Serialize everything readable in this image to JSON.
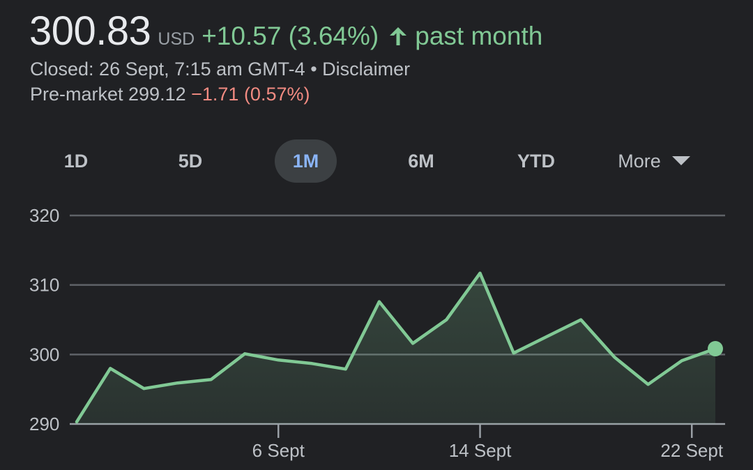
{
  "quote": {
    "price": "300.83",
    "currency": "USD",
    "change": "+10.57 (3.64%)",
    "period": "past month",
    "closed_line": "Closed: 26 Sept, 7:15 am GMT-4 • Disclaimer",
    "premarket_label": "Pre-market 299.12",
    "premarket_change": "−1.71 (0.57%)"
  },
  "icons": {
    "up_arrow": "arrow-upward-icon",
    "more_caret": "caret-down-icon"
  },
  "colors": {
    "background": "#202124",
    "positive": "#81c995",
    "negative": "#f28b82",
    "active_tab_text": "#8ab4f8",
    "active_tab_bg": "#3c4043",
    "grid": "#5f6368",
    "area_fill": "#81c995"
  },
  "tabs": [
    {
      "label": "1D",
      "active": false
    },
    {
      "label": "5D",
      "active": false
    },
    {
      "label": "1M",
      "active": true
    },
    {
      "label": "6M",
      "active": false
    },
    {
      "label": "YTD",
      "active": false
    },
    {
      "label": "More",
      "active": false
    }
  ],
  "chart_data": {
    "type": "line",
    "title": "",
    "xlabel": "",
    "ylabel": "",
    "ylim": [
      290,
      320
    ],
    "yticks": [
      "290",
      "300",
      "310",
      "320"
    ],
    "xticks": [
      "6 Sept",
      "14 Sept",
      "22 Sept"
    ],
    "grid": true,
    "series": [
      {
        "values": [
          290.3,
          298.0,
          295.1,
          295.9,
          296.4,
          300.1,
          299.2,
          298.7,
          297.9,
          307.6,
          301.6,
          305.0,
          311.7,
          300.2,
          302.6,
          305.0,
          299.6,
          295.7,
          299.1,
          300.83
        ]
      }
    ]
  }
}
